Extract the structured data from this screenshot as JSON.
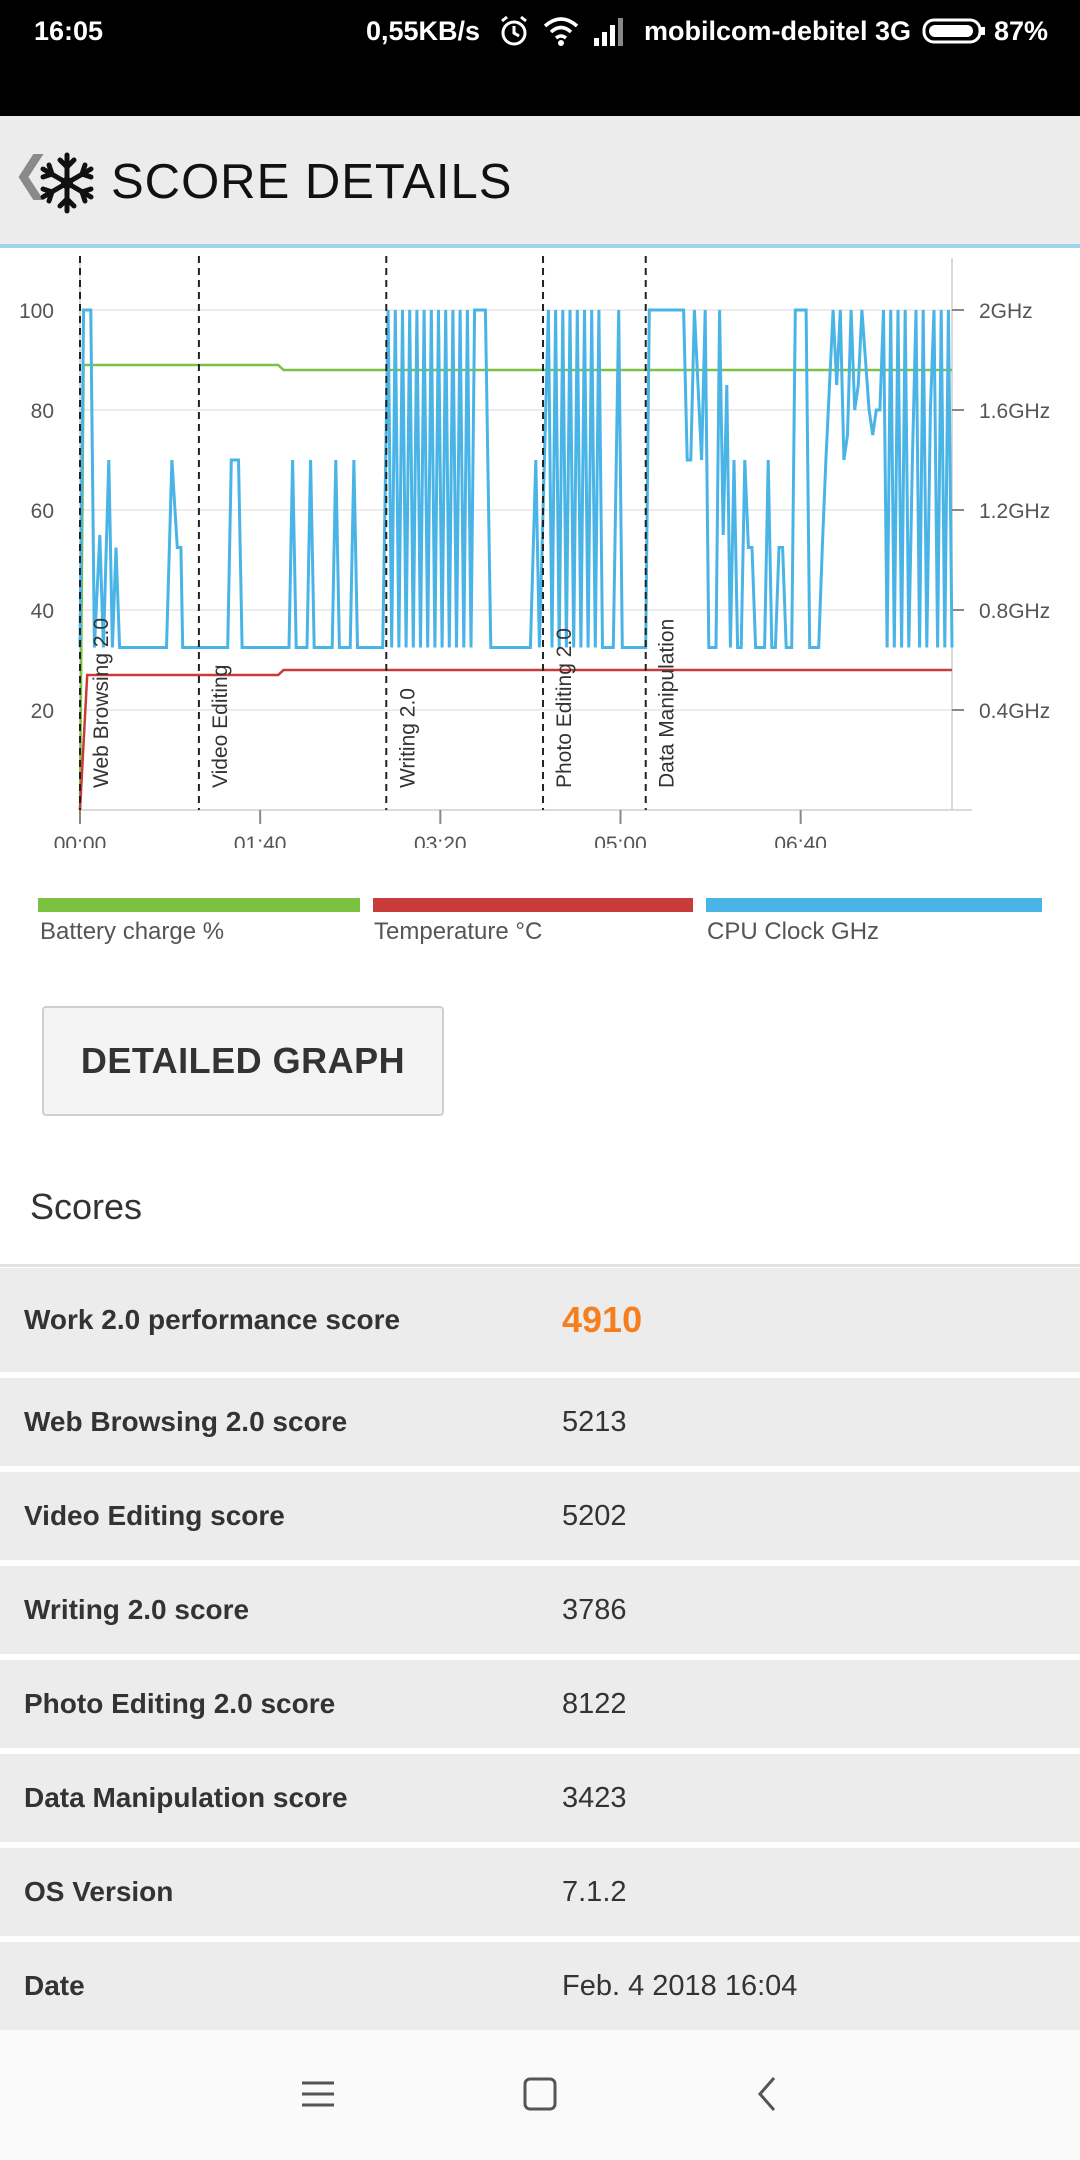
{
  "status_bar": {
    "time": "16:05",
    "speed": "0,55KB/s",
    "carrier": "mobilcom-debitel 3G",
    "battery": "87%",
    "icons": [
      "alarm-icon",
      "wifi-icon",
      "signal-icon",
      "battery-icon"
    ]
  },
  "app_bar": {
    "back_icon": "chevron-left-icon",
    "logo_icon": "snowflake-icon",
    "title": "SCORE DETAILS"
  },
  "chart_data": {
    "type": "line",
    "x_ticks": [
      "00:00",
      "01:40",
      "03:20",
      "05:00",
      "06:40"
    ],
    "y_left_ticks": [
      "20",
      "40",
      "60",
      "80",
      "100"
    ],
    "y_right_ticks": [
      "0.4GHz",
      "0.8GHz",
      "1.2GHz",
      "1.6GHz",
      "2GHz"
    ],
    "ylim_left": [
      0,
      100
    ],
    "ylim_right": [
      0,
      2.0
    ],
    "xlim_seconds": [
      0,
      484
    ],
    "grid": true,
    "markers": [
      {
        "label": "Web Browsing 2.0",
        "x": 0
      },
      {
        "label": "Video Editing",
        "x": 66
      },
      {
        "label": "Writing 2.0",
        "x": 170
      },
      {
        "label": "Photo Editing 2.0",
        "x": 257
      },
      {
        "label": "Data Manipulation",
        "x": 314
      }
    ],
    "series": [
      {
        "name": "Battery charge %",
        "color": "#7cc242",
        "points": [
          [
            0,
            0
          ],
          [
            2,
            89
          ],
          [
            110,
            89
          ],
          [
            113,
            88
          ],
          [
            484,
            88
          ]
        ]
      },
      {
        "name": "Temperature °C",
        "color": "#c93a3a",
        "points": [
          [
            0,
            0
          ],
          [
            4,
            27
          ],
          [
            110,
            27
          ],
          [
            113,
            28
          ],
          [
            484,
            28
          ]
        ]
      },
      {
        "name": "CPU Clock GHz",
        "color": "#4ab4e6",
        "points": [
          [
            0,
            0.65
          ],
          [
            2,
            2.0
          ],
          [
            6,
            2.0
          ],
          [
            8,
            0.65
          ],
          [
            11,
            1.1
          ],
          [
            13,
            0.65
          ],
          [
            16,
            1.4
          ],
          [
            18,
            0.65
          ],
          [
            20,
            1.05
          ],
          [
            22,
            0.65
          ],
          [
            48,
            0.65
          ],
          [
            51,
            1.4
          ],
          [
            54,
            1.05
          ],
          [
            56,
            1.05
          ],
          [
            57,
            0.65
          ],
          [
            82,
            0.65
          ],
          [
            84,
            1.4
          ],
          [
            88,
            1.4
          ],
          [
            90,
            0.65
          ],
          [
            116,
            0.65
          ],
          [
            118,
            1.4
          ],
          [
            120,
            0.65
          ],
          [
            126,
            0.65
          ],
          [
            128,
            1.4
          ],
          [
            130,
            0.65
          ],
          [
            140,
            0.65
          ],
          [
            142,
            1.4
          ],
          [
            144,
            0.65
          ],
          [
            150,
            0.65
          ],
          [
            152,
            1.4
          ],
          [
            154,
            0.65
          ],
          [
            168,
            0.65
          ],
          [
            171,
            2.0
          ],
          [
            173,
            0.65
          ],
          [
            175,
            2.0
          ],
          [
            177,
            0.65
          ],
          [
            179,
            2.0
          ],
          [
            181,
            0.65
          ],
          [
            183,
            2.0
          ],
          [
            185,
            0.65
          ],
          [
            187,
            2.0
          ],
          [
            189,
            0.65
          ],
          [
            191,
            2.0
          ],
          [
            193,
            0.65
          ],
          [
            195,
            2.0
          ],
          [
            197,
            0.65
          ],
          [
            199,
            2.0
          ],
          [
            201,
            0.65
          ],
          [
            203,
            2.0
          ],
          [
            205,
            0.65
          ],
          [
            207,
            2.0
          ],
          [
            209,
            0.65
          ],
          [
            211,
            2.0
          ],
          [
            213,
            0.65
          ],
          [
            215,
            2.0
          ],
          [
            217,
            0.65
          ],
          [
            219,
            2.0
          ],
          [
            225,
            2.0
          ],
          [
            228,
            0.65
          ],
          [
            250,
            0.65
          ],
          [
            253,
            1.4
          ],
          [
            255,
            0.65
          ],
          [
            260,
            2.0
          ],
          [
            262,
            0.65
          ],
          [
            264,
            2.0
          ],
          [
            266,
            0.65
          ],
          [
            268,
            2.0
          ],
          [
            270,
            0.65
          ],
          [
            272,
            2.0
          ],
          [
            274,
            0.65
          ],
          [
            276,
            2.0
          ],
          [
            278,
            0.65
          ],
          [
            280,
            2.0
          ],
          [
            282,
            0.65
          ],
          [
            284,
            2.0
          ],
          [
            286,
            0.65
          ],
          [
            288,
            2.0
          ],
          [
            290,
            0.65
          ],
          [
            296,
            0.65
          ],
          [
            299,
            2.0
          ],
          [
            301,
            0.65
          ],
          [
            304,
            0.65
          ],
          [
            314,
            0.65
          ],
          [
            316,
            2.0
          ],
          [
            335,
            2.0
          ],
          [
            337,
            1.4
          ],
          [
            339,
            1.4
          ],
          [
            341,
            2.0
          ],
          [
            343,
            1.7
          ],
          [
            345,
            1.4
          ],
          [
            347,
            2.0
          ],
          [
            349,
            0.65
          ],
          [
            353,
            0.65
          ],
          [
            355,
            2.0
          ],
          [
            357,
            1.1
          ],
          [
            359,
            1.7
          ],
          [
            361,
            0.65
          ],
          [
            363,
            1.4
          ],
          [
            365,
            0.65
          ],
          [
            367,
            0.65
          ],
          [
            369,
            1.4
          ],
          [
            371,
            1.05
          ],
          [
            373,
            1.05
          ],
          [
            375,
            0.65
          ],
          [
            380,
            0.65
          ],
          [
            382,
            1.4
          ],
          [
            384,
            0.65
          ],
          [
            386,
            0.65
          ],
          [
            388,
            1.05
          ],
          [
            390,
            1.05
          ],
          [
            392,
            0.65
          ],
          [
            395,
            0.65
          ],
          [
            397,
            2.0
          ],
          [
            403,
            2.0
          ],
          [
            405,
            0.65
          ],
          [
            410,
            0.65
          ],
          [
            412,
            1.05
          ],
          [
            414,
            1.4
          ],
          [
            416,
            1.7
          ],
          [
            418,
            2.0
          ],
          [
            420,
            1.7
          ],
          [
            422,
            2.0
          ],
          [
            424,
            1.4
          ],
          [
            426,
            1.5
          ],
          [
            428,
            2.0
          ],
          [
            430,
            1.6
          ],
          [
            432,
            1.7
          ],
          [
            434,
            2.0
          ],
          [
            436,
            1.8
          ],
          [
            438,
            1.6
          ],
          [
            440,
            1.5
          ],
          [
            442,
            1.6
          ],
          [
            444,
            1.6
          ],
          [
            446,
            2.0
          ],
          [
            448,
            0.65
          ],
          [
            450,
            2.0
          ],
          [
            452,
            0.65
          ],
          [
            454,
            2.0
          ],
          [
            456,
            0.65
          ],
          [
            458,
            2.0
          ],
          [
            460,
            0.65
          ],
          [
            462,
            1.4
          ],
          [
            464,
            2.0
          ],
          [
            466,
            0.65
          ],
          [
            468,
            2.0
          ],
          [
            470,
            0.65
          ],
          [
            472,
            1.6
          ],
          [
            474,
            2.0
          ],
          [
            476,
            0.65
          ],
          [
            478,
            2.0
          ],
          [
            480,
            0.65
          ],
          [
            482,
            2.0
          ],
          [
            484,
            0.65
          ]
        ]
      }
    ]
  },
  "legend": [
    {
      "label": "Battery charge %",
      "color": "#7cc242"
    },
    {
      "label": "Temperature °C",
      "color": "#c93a3a"
    },
    {
      "label": "CPU Clock GHz",
      "color": "#4ab4e6"
    }
  ],
  "detail_button": {
    "label": "DETAILED GRAPH"
  },
  "scores": {
    "heading": "Scores",
    "rows": [
      {
        "label": "Work 2.0 performance score",
        "value": "4910"
      },
      {
        "label": "Web Browsing 2.0 score",
        "value": "5213"
      },
      {
        "label": "Video Editing score",
        "value": "5202"
      },
      {
        "label": "Writing 2.0 score",
        "value": "3786"
      },
      {
        "label": "Photo Editing 2.0 score",
        "value": "8122"
      },
      {
        "label": "Data Manipulation score",
        "value": "3423"
      },
      {
        "label": "OS Version",
        "value": "7.1.2"
      },
      {
        "label": "Date",
        "value": "Feb. 4 2018 16:04"
      }
    ]
  },
  "nav_bar": {
    "icons": [
      "menu-icon",
      "home-square-icon",
      "back-chevron-icon"
    ]
  }
}
